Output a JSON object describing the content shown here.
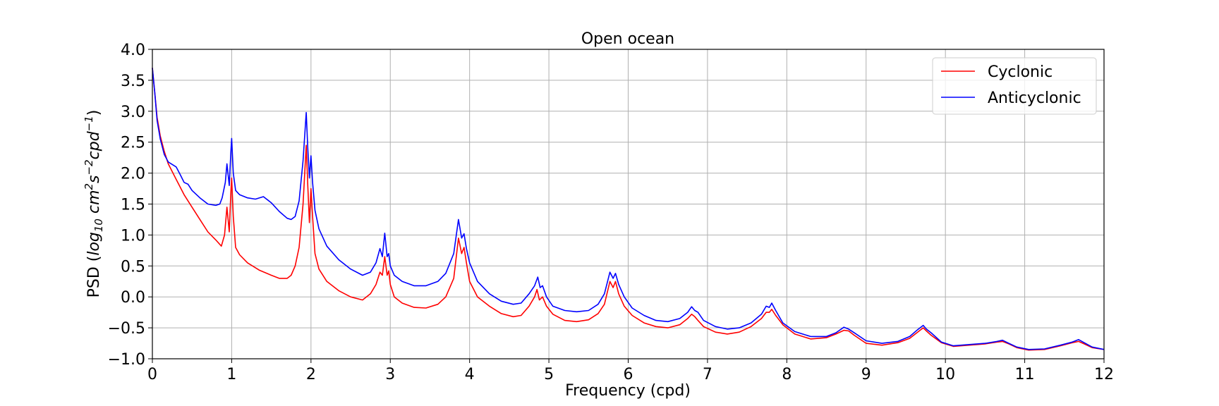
{
  "chart_data": {
    "type": "line",
    "title": "Open ocean",
    "xlabel": "Frequency (cpd)",
    "ylabel": {
      "prefix": "PSD (",
      "log": "log",
      "log_sub": "10",
      "cm": "cm",
      "cm_sup": "2",
      "s": "s",
      "s_sup": "−2",
      "cpd": "cpd",
      "cpd_sup": "−1",
      "suffix": ")"
    },
    "xlim": [
      0,
      12
    ],
    "ylim": [
      -1.0,
      4.0
    ],
    "xticks": [
      "0",
      "1",
      "2",
      "3",
      "4",
      "5",
      "6",
      "7",
      "8",
      "9",
      "10",
      "11",
      "12"
    ],
    "yticks": [
      "−1.0",
      "−0.5",
      "0.0",
      "0.5",
      "1.0",
      "1.5",
      "2.0",
      "2.5",
      "3.0",
      "3.5",
      "4.0"
    ],
    "grid": true,
    "legend_position": "top-right",
    "series": [
      {
        "name": "Cyclonic",
        "color": "#ff0000",
        "points": [
          [
            0.0,
            3.7
          ],
          [
            0.03,
            3.3
          ],
          [
            0.06,
            2.9
          ],
          [
            0.1,
            2.6
          ],
          [
            0.15,
            2.35
          ],
          [
            0.2,
            2.15
          ],
          [
            0.3,
            1.9
          ],
          [
            0.4,
            1.65
          ],
          [
            0.5,
            1.45
          ],
          [
            0.6,
            1.25
          ],
          [
            0.7,
            1.05
          ],
          [
            0.8,
            0.92
          ],
          [
            0.87,
            0.82
          ],
          [
            0.91,
            1.0
          ],
          [
            0.94,
            1.45
          ],
          [
            0.97,
            1.05
          ],
          [
            0.99,
            1.7
          ],
          [
            1.0,
            1.92
          ],
          [
            1.02,
            1.3
          ],
          [
            1.05,
            0.8
          ],
          [
            1.1,
            0.68
          ],
          [
            1.2,
            0.55
          ],
          [
            1.35,
            0.43
          ],
          [
            1.5,
            0.35
          ],
          [
            1.6,
            0.3
          ],
          [
            1.7,
            0.3
          ],
          [
            1.75,
            0.35
          ],
          [
            1.8,
            0.5
          ],
          [
            1.85,
            0.8
          ],
          [
            1.9,
            1.5
          ],
          [
            1.94,
            2.45
          ],
          [
            1.96,
            1.8
          ],
          [
            1.98,
            1.2
          ],
          [
            2.0,
            1.75
          ],
          [
            2.02,
            1.3
          ],
          [
            2.05,
            0.7
          ],
          [
            2.1,
            0.45
          ],
          [
            2.2,
            0.25
          ],
          [
            2.35,
            0.1
          ],
          [
            2.5,
            0.0
          ],
          [
            2.65,
            -0.05
          ],
          [
            2.75,
            0.05
          ],
          [
            2.82,
            0.2
          ],
          [
            2.87,
            0.4
          ],
          [
            2.9,
            0.35
          ],
          [
            2.93,
            0.65
          ],
          [
            2.96,
            0.35
          ],
          [
            2.98,
            0.42
          ],
          [
            3.0,
            0.2
          ],
          [
            3.05,
            0.0
          ],
          [
            3.15,
            -0.1
          ],
          [
            3.3,
            -0.17
          ],
          [
            3.45,
            -0.18
          ],
          [
            3.6,
            -0.12
          ],
          [
            3.7,
            0.0
          ],
          [
            3.8,
            0.3
          ],
          [
            3.86,
            0.95
          ],
          [
            3.9,
            0.7
          ],
          [
            3.93,
            0.8
          ],
          [
            3.96,
            0.55
          ],
          [
            4.0,
            0.25
          ],
          [
            4.1,
            0.0
          ],
          [
            4.25,
            -0.15
          ],
          [
            4.4,
            -0.27
          ],
          [
            4.55,
            -0.32
          ],
          [
            4.65,
            -0.3
          ],
          [
            4.75,
            -0.15
          ],
          [
            4.82,
            0.0
          ],
          [
            4.85,
            0.12
          ],
          [
            4.88,
            -0.05
          ],
          [
            4.92,
            0.0
          ],
          [
            4.97,
            -0.15
          ],
          [
            5.05,
            -0.28
          ],
          [
            5.2,
            -0.38
          ],
          [
            5.35,
            -0.4
          ],
          [
            5.5,
            -0.37
          ],
          [
            5.62,
            -0.27
          ],
          [
            5.7,
            -0.12
          ],
          [
            5.77,
            0.25
          ],
          [
            5.81,
            0.15
          ],
          [
            5.84,
            0.25
          ],
          [
            5.88,
            0.05
          ],
          [
            5.95,
            -0.15
          ],
          [
            6.05,
            -0.3
          ],
          [
            6.2,
            -0.42
          ],
          [
            6.35,
            -0.48
          ],
          [
            6.5,
            -0.5
          ],
          [
            6.65,
            -0.45
          ],
          [
            6.75,
            -0.35
          ],
          [
            6.8,
            -0.28
          ],
          [
            6.84,
            -0.32
          ],
          [
            6.88,
            -0.38
          ],
          [
            6.95,
            -0.48
          ],
          [
            7.1,
            -0.57
          ],
          [
            7.25,
            -0.6
          ],
          [
            7.4,
            -0.57
          ],
          [
            7.55,
            -0.48
          ],
          [
            7.68,
            -0.35
          ],
          [
            7.74,
            -0.25
          ],
          [
            7.78,
            -0.25
          ],
          [
            7.81,
            -0.2
          ],
          [
            7.86,
            -0.3
          ],
          [
            7.95,
            -0.45
          ],
          [
            8.1,
            -0.6
          ],
          [
            8.3,
            -0.68
          ],
          [
            8.5,
            -0.66
          ],
          [
            8.62,
            -0.6
          ],
          [
            8.72,
            -0.54
          ],
          [
            8.78,
            -0.55
          ],
          [
            8.85,
            -0.62
          ],
          [
            9.0,
            -0.75
          ],
          [
            9.2,
            -0.78
          ],
          [
            9.4,
            -0.74
          ],
          [
            9.55,
            -0.67
          ],
          [
            9.65,
            -0.57
          ],
          [
            9.72,
            -0.5
          ],
          [
            9.76,
            -0.55
          ],
          [
            9.82,
            -0.62
          ],
          [
            9.95,
            -0.74
          ],
          [
            10.1,
            -0.8
          ],
          [
            10.3,
            -0.78
          ],
          [
            10.5,
            -0.76
          ],
          [
            10.65,
            -0.73
          ],
          [
            10.72,
            -0.72
          ],
          [
            10.8,
            -0.76
          ],
          [
            10.9,
            -0.82
          ],
          [
            11.05,
            -0.86
          ],
          [
            11.25,
            -0.85
          ],
          [
            11.45,
            -0.79
          ],
          [
            11.6,
            -0.74
          ],
          [
            11.68,
            -0.72
          ],
          [
            11.75,
            -0.76
          ],
          [
            11.85,
            -0.82
          ],
          [
            12.0,
            -0.85
          ]
        ]
      },
      {
        "name": "Anticyclonic",
        "color": "#0000ff",
        "points": [
          [
            0.0,
            3.7
          ],
          [
            0.03,
            3.3
          ],
          [
            0.06,
            2.85
          ],
          [
            0.1,
            2.55
          ],
          [
            0.15,
            2.3
          ],
          [
            0.2,
            2.18
          ],
          [
            0.3,
            2.1
          ],
          [
            0.35,
            1.98
          ],
          [
            0.4,
            1.85
          ],
          [
            0.45,
            1.82
          ],
          [
            0.5,
            1.72
          ],
          [
            0.6,
            1.6
          ],
          [
            0.7,
            1.5
          ],
          [
            0.8,
            1.48
          ],
          [
            0.85,
            1.5
          ],
          [
            0.88,
            1.6
          ],
          [
            0.92,
            1.85
          ],
          [
            0.94,
            2.15
          ],
          [
            0.97,
            1.8
          ],
          [
            0.99,
            2.35
          ],
          [
            1.0,
            2.56
          ],
          [
            1.02,
            2.0
          ],
          [
            1.05,
            1.72
          ],
          [
            1.1,
            1.65
          ],
          [
            1.2,
            1.6
          ],
          [
            1.3,
            1.58
          ],
          [
            1.4,
            1.62
          ],
          [
            1.5,
            1.52
          ],
          [
            1.6,
            1.38
          ],
          [
            1.7,
            1.27
          ],
          [
            1.75,
            1.25
          ],
          [
            1.8,
            1.3
          ],
          [
            1.85,
            1.55
          ],
          [
            1.9,
            2.2
          ],
          [
            1.94,
            2.98
          ],
          [
            1.96,
            2.4
          ],
          [
            1.98,
            1.92
          ],
          [
            2.0,
            2.28
          ],
          [
            2.02,
            1.85
          ],
          [
            2.05,
            1.4
          ],
          [
            2.1,
            1.1
          ],
          [
            2.2,
            0.82
          ],
          [
            2.35,
            0.6
          ],
          [
            2.5,
            0.45
          ],
          [
            2.65,
            0.35
          ],
          [
            2.75,
            0.4
          ],
          [
            2.82,
            0.55
          ],
          [
            2.87,
            0.78
          ],
          [
            2.9,
            0.65
          ],
          [
            2.93,
            1.03
          ],
          [
            2.96,
            0.65
          ],
          [
            2.98,
            0.7
          ],
          [
            3.0,
            0.5
          ],
          [
            3.05,
            0.35
          ],
          [
            3.15,
            0.25
          ],
          [
            3.3,
            0.18
          ],
          [
            3.45,
            0.18
          ],
          [
            3.6,
            0.25
          ],
          [
            3.7,
            0.38
          ],
          [
            3.8,
            0.7
          ],
          [
            3.86,
            1.25
          ],
          [
            3.9,
            0.95
          ],
          [
            3.93,
            1.02
          ],
          [
            3.96,
            0.78
          ],
          [
            4.0,
            0.55
          ],
          [
            4.1,
            0.25
          ],
          [
            4.25,
            0.05
          ],
          [
            4.4,
            -0.07
          ],
          [
            4.55,
            -0.12
          ],
          [
            4.65,
            -0.1
          ],
          [
            4.75,
            0.05
          ],
          [
            4.82,
            0.18
          ],
          [
            4.86,
            0.32
          ],
          [
            4.89,
            0.15
          ],
          [
            4.92,
            0.18
          ],
          [
            4.97,
            0.0
          ],
          [
            5.05,
            -0.15
          ],
          [
            5.2,
            -0.22
          ],
          [
            5.35,
            -0.24
          ],
          [
            5.5,
            -0.22
          ],
          [
            5.62,
            -0.12
          ],
          [
            5.7,
            0.05
          ],
          [
            5.77,
            0.4
          ],
          [
            5.81,
            0.3
          ],
          [
            5.84,
            0.38
          ],
          [
            5.88,
            0.2
          ],
          [
            5.95,
            0.0
          ],
          [
            6.05,
            -0.18
          ],
          [
            6.2,
            -0.3
          ],
          [
            6.35,
            -0.38
          ],
          [
            6.5,
            -0.4
          ],
          [
            6.65,
            -0.35
          ],
          [
            6.75,
            -0.25
          ],
          [
            6.8,
            -0.16
          ],
          [
            6.84,
            -0.22
          ],
          [
            6.88,
            -0.25
          ],
          [
            6.95,
            -0.38
          ],
          [
            7.1,
            -0.48
          ],
          [
            7.25,
            -0.52
          ],
          [
            7.4,
            -0.5
          ],
          [
            7.55,
            -0.42
          ],
          [
            7.68,
            -0.28
          ],
          [
            7.74,
            -0.15
          ],
          [
            7.78,
            -0.17
          ],
          [
            7.81,
            -0.1
          ],
          [
            7.86,
            -0.22
          ],
          [
            7.95,
            -0.42
          ],
          [
            8.1,
            -0.56
          ],
          [
            8.3,
            -0.64
          ],
          [
            8.5,
            -0.64
          ],
          [
            8.62,
            -0.58
          ],
          [
            8.72,
            -0.49
          ],
          [
            8.78,
            -0.52
          ],
          [
            8.85,
            -0.58
          ],
          [
            9.0,
            -0.71
          ],
          [
            9.2,
            -0.75
          ],
          [
            9.4,
            -0.72
          ],
          [
            9.55,
            -0.64
          ],
          [
            9.65,
            -0.53
          ],
          [
            9.72,
            -0.46
          ],
          [
            9.76,
            -0.52
          ],
          [
            9.82,
            -0.58
          ],
          [
            9.95,
            -0.73
          ],
          [
            10.1,
            -0.79
          ],
          [
            10.3,
            -0.77
          ],
          [
            10.5,
            -0.75
          ],
          [
            10.65,
            -0.72
          ],
          [
            10.72,
            -0.7
          ],
          [
            10.8,
            -0.75
          ],
          [
            10.9,
            -0.81
          ],
          [
            11.05,
            -0.85
          ],
          [
            11.25,
            -0.84
          ],
          [
            11.45,
            -0.78
          ],
          [
            11.6,
            -0.73
          ],
          [
            11.68,
            -0.69
          ],
          [
            11.75,
            -0.74
          ],
          [
            11.85,
            -0.81
          ],
          [
            12.0,
            -0.85
          ]
        ]
      }
    ]
  }
}
